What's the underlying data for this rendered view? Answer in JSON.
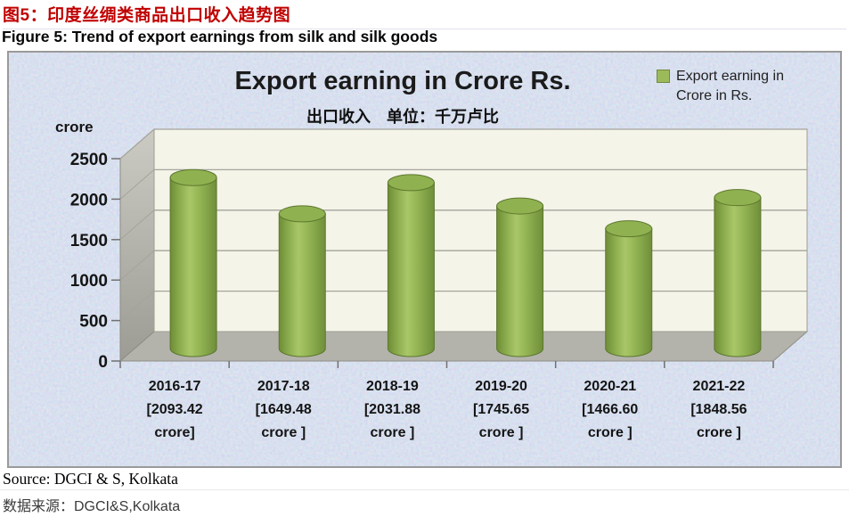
{
  "header": {
    "title_zh": "图5：印度丝绸类商品出口收入趋势图",
    "title_en": "Figure 5: Trend of export earnings from silk and silk goods"
  },
  "chart": {
    "title": "Export earning in Crore Rs.",
    "subtitle": "出口收入　单位：千万卢比",
    "legend": "Export earning in Crore in Rs.",
    "y_axis_label": "crore"
  },
  "chart_data": {
    "type": "bar",
    "style": "3d-cylinder",
    "title": "Export earning in Crore Rs.",
    "subtitle": "出口收入　单位：千万卢比",
    "ylabel": "crore",
    "xlabel": "",
    "ylim": [
      0,
      2500
    ],
    "yticks": [
      0,
      500,
      1000,
      1500,
      2000,
      2500
    ],
    "grid": true,
    "legend_entries": [
      "Export earning in Crore in Rs."
    ],
    "legend_position": "top-right",
    "categories": [
      "2016-17",
      "2017-18",
      "2018-19",
      "2019-20",
      "2020-21",
      "2021-22"
    ],
    "values": [
      2093.42,
      1649.48,
      2031.88,
      1745.65,
      1466.6,
      1848.56
    ],
    "x_tick_lines": [
      [
        "2016-17",
        "[2093.42",
        "crore]"
      ],
      [
        "2017-18",
        "[1649.48",
        "crore ]"
      ],
      [
        "2018-19",
        "[2031.88",
        "crore ]"
      ],
      [
        "2019-20",
        "[1745.65",
        "crore ]"
      ],
      [
        "2020-21",
        "[1466.60",
        "crore ]"
      ],
      [
        "2021-22",
        "[1848.56",
        "crore ]"
      ]
    ]
  },
  "footer": {
    "source_en": "Source: DGCI & S, Kolkata",
    "source_zh": "数据来源：DGCI&S,Kolkata"
  },
  "colors": {
    "heading_red": "#c00000",
    "bar_green": "#8fb14e",
    "bar_edge": "#5c782e",
    "bar_top": "#90b150",
    "legend_swatch": "#9cba59",
    "plot_wall": "#f5f4e9",
    "speckle_base": "#c7d6ec"
  }
}
